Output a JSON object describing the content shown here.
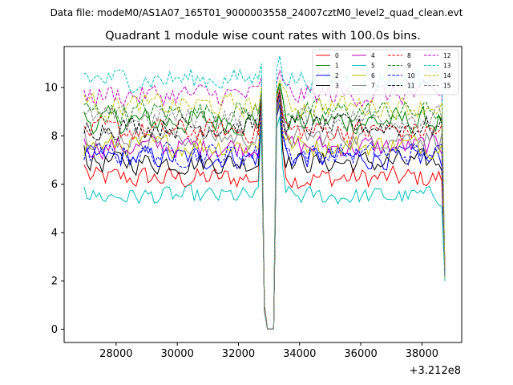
{
  "file_label": "Data file: modeM0/AS1A07_165T01_9000003558_24007cztM0_level2_quad_clean.evt",
  "colors": [
    "#ff0000",
    "#008000",
    "#0000ff",
    "#000000",
    "#bf00bf",
    "#00bfbf",
    "#bfbf00",
    "#808080",
    "#ff0000",
    "#008000",
    "#0000ff",
    "#000000",
    "#bf00bf",
    "#00bfbf",
    "#bfbf00",
    "#808080"
  ],
  "chart_data": {
    "type": "line",
    "title": "Quadrant 1 module wise count rates with 100.0s bins.",
    "xlabel": "",
    "ylabel": "",
    "x_offset_label": "+3.212e8",
    "xlim": [
      26300,
      39300
    ],
    "ylim": [
      -0.55,
      11.7
    ],
    "x_ticks": [
      28000,
      30000,
      32000,
      34000,
      36000,
      38000
    ],
    "x_tick_labels": [
      "28000",
      "30000",
      "32000",
      "34000",
      "36000",
      "38000"
    ],
    "y_ticks": [
      0,
      2,
      4,
      6,
      8,
      10
    ],
    "y_tick_labels": [
      "0",
      "2",
      "4",
      "6",
      "8",
      "10"
    ],
    "segments": [
      {
        "x_start": 26950,
        "x_end": 32750,
        "step": 100
      },
      {
        "x_start": 33350,
        "x_end": 38750,
        "step": 100
      }
    ],
    "gap_x": [
      32950,
      33050,
      33150
    ],
    "gap_y": [
      0.0,
      0.0,
      0.0
    ],
    "legend_location": "top-right",
    "legend_columns": 4,
    "series": [
      {
        "name": "0",
        "dash": "solid",
        "base": 6.25,
        "noise": 0.3,
        "start": 6.8,
        "edge": 9.6
      },
      {
        "name": "1",
        "dash": "solid",
        "base": 8.6,
        "noise": 0.35,
        "start": 9.0,
        "edge": 9.9
      },
      {
        "name": "2",
        "dash": "solid",
        "base": 7.1,
        "noise": 0.3,
        "start": 7.3,
        "edge": 9.2
      },
      {
        "name": "3",
        "dash": "solid",
        "base": 6.9,
        "noise": 0.3,
        "start": 7.6,
        "edge": 9.0
      },
      {
        "name": "4",
        "dash": "solid",
        "base": 7.55,
        "noise": 0.3,
        "start": 7.9,
        "edge": 9.4
      },
      {
        "name": "5",
        "dash": "solid",
        "base": 5.5,
        "noise": 0.25,
        "start": 5.9,
        "edge": 8.5
      },
      {
        "name": "6",
        "dash": "solid",
        "base": 7.6,
        "noise": 0.3,
        "start": 7.2,
        "edge": 9.1
      },
      {
        "name": "7",
        "dash": "solid",
        "base": 7.95,
        "noise": 0.3,
        "start": 8.3,
        "edge": 9.3
      },
      {
        "name": "8",
        "dash": "dashed",
        "base": 8.2,
        "noise": 0.3,
        "start": 8.4,
        "edge": 9.6
      },
      {
        "name": "9",
        "dash": "dashed",
        "base": 9.0,
        "noise": 0.3,
        "start": 9.3,
        "edge": 9.8
      },
      {
        "name": "10",
        "dash": "dashed",
        "base": 7.25,
        "noise": 0.3,
        "start": 7.0,
        "edge": 9.0
      },
      {
        "name": "11",
        "dash": "dashed",
        "base": 8.4,
        "noise": 0.3,
        "start": 8.1,
        "edge": 9.5
      },
      {
        "name": "12",
        "dash": "dashed",
        "base": 9.7,
        "noise": 0.3,
        "start": 9.9,
        "edge": 10.4
      },
      {
        "name": "13",
        "dash": "dashed",
        "base": 10.35,
        "noise": 0.3,
        "start": 10.6,
        "edge": 11.0
      },
      {
        "name": "14",
        "dash": "dashed",
        "base": 9.25,
        "noise": 0.3,
        "start": 9.7,
        "edge": 10.0
      },
      {
        "name": "15",
        "dash": "dashed",
        "base": 8.75,
        "noise": 0.3,
        "start": 8.9,
        "edge": 9.7
      }
    ]
  }
}
